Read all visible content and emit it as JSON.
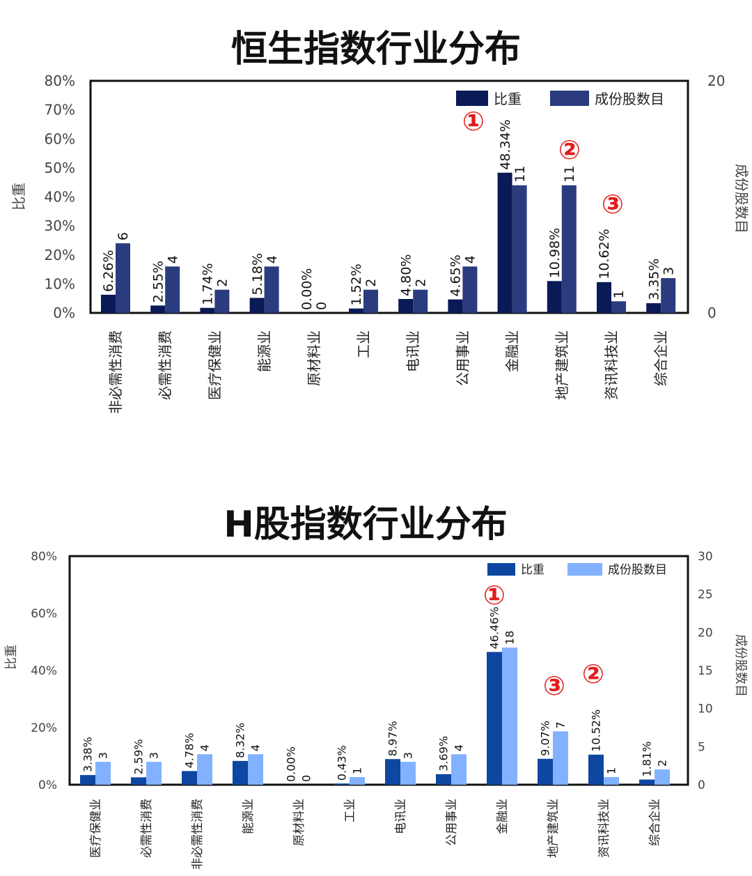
{
  "chart_data": [
    {
      "type": "bar",
      "title": "恒生指数行业分布",
      "ylabel": "比重",
      "y2label": "成份股数目",
      "ylim": [
        0,
        80
      ],
      "y2lim": [
        0,
        20
      ],
      "yticks": [
        "0%",
        "10%",
        "20%",
        "30%",
        "40%",
        "50%",
        "60%",
        "70%",
        "80%"
      ],
      "y2ticks": [
        "0",
        "20"
      ],
      "categories": [
        "非必需性消费",
        "必需性消费",
        "医疗保健业",
        "能源业",
        "原材料业",
        "工业",
        "电讯业",
        "公用事业",
        "金融业",
        "地产建筑业",
        "资讯科技业",
        "综合企业"
      ],
      "series": [
        {
          "name": "比重",
          "color": "#0a1a57",
          "values": [
            6.26,
            2.55,
            1.74,
            5.18,
            0.0,
            1.52,
            4.8,
            4.65,
            48.34,
            10.98,
            10.62,
            3.35
          ],
          "labels": [
            "6.26%",
            "2.55%",
            "1.74%",
            "5.18%",
            "0.00%",
            "1.52%",
            "4.80%",
            "4.65%",
            "48.34%",
            "10.98%",
            "10.62%",
            "3.35%"
          ]
        },
        {
          "name": "成份股数目",
          "color": "#2b3c7e",
          "values": [
            6,
            4,
            2,
            4,
            0,
            2,
            2,
            4,
            11,
            11,
            1,
            3
          ],
          "labels": [
            "6",
            "4",
            "2",
            "4",
            "0",
            "2",
            "2",
            "4",
            "11",
            "11",
            "1",
            "3"
          ]
        }
      ],
      "annotations": [
        {
          "text": "①",
          "category": "金融业"
        },
        {
          "text": "②",
          "category": "地产建筑业"
        },
        {
          "text": "③",
          "category": "资讯科技业"
        }
      ],
      "legend": "top-right",
      "grid": false
    },
    {
      "type": "bar",
      "title": "H股指数行业分布",
      "ylabel": "比重",
      "y2label": "成份股数目",
      "ylim": [
        0,
        80
      ],
      "y2lim": [
        0,
        30
      ],
      "yticks": [
        "0%",
        "20%",
        "40%",
        "60%",
        "80%"
      ],
      "y2ticks": [
        "0",
        "5",
        "10",
        "15",
        "20",
        "25",
        "30"
      ],
      "categories": [
        "医疗保健业",
        "必需性消费",
        "非必需性消费",
        "能源业",
        "原材料业",
        "工业",
        "电讯业",
        "公用事业",
        "金融业",
        "地产建筑业",
        "资讯科技业",
        "综合企业"
      ],
      "series": [
        {
          "name": "比重",
          "color": "#0d47a1",
          "values": [
            3.38,
            2.59,
            4.78,
            8.32,
            0.0,
            0.43,
            8.97,
            3.69,
            46.46,
            9.07,
            10.52,
            1.81
          ],
          "labels": [
            "3.38%",
            "2.59%",
            "4.78%",
            "8.32%",
            "0.00%",
            "0.43%",
            "8.97%",
            "3.69%",
            "46.46%",
            "9.07%",
            "10.52%",
            "1.81%"
          ]
        },
        {
          "name": "成份股数目",
          "color": "#82b1ff",
          "values": [
            3,
            3,
            4,
            4,
            0,
            1,
            3,
            4,
            18,
            7,
            1,
            2
          ],
          "labels": [
            "3",
            "3",
            "4",
            "4",
            "0",
            "1",
            "3",
            "4",
            "18",
            "7",
            "1",
            "2"
          ]
        }
      ],
      "annotations": [
        {
          "text": "①",
          "category": "金融业"
        },
        {
          "text": "②",
          "category": "资讯科技业"
        },
        {
          "text": "③",
          "category": "地产建筑业"
        }
      ],
      "legend": "top-right",
      "grid": false
    }
  ],
  "colors": {
    "annotation": "#e31b1b",
    "axis_text": "#444444",
    "frame": "#111111"
  }
}
